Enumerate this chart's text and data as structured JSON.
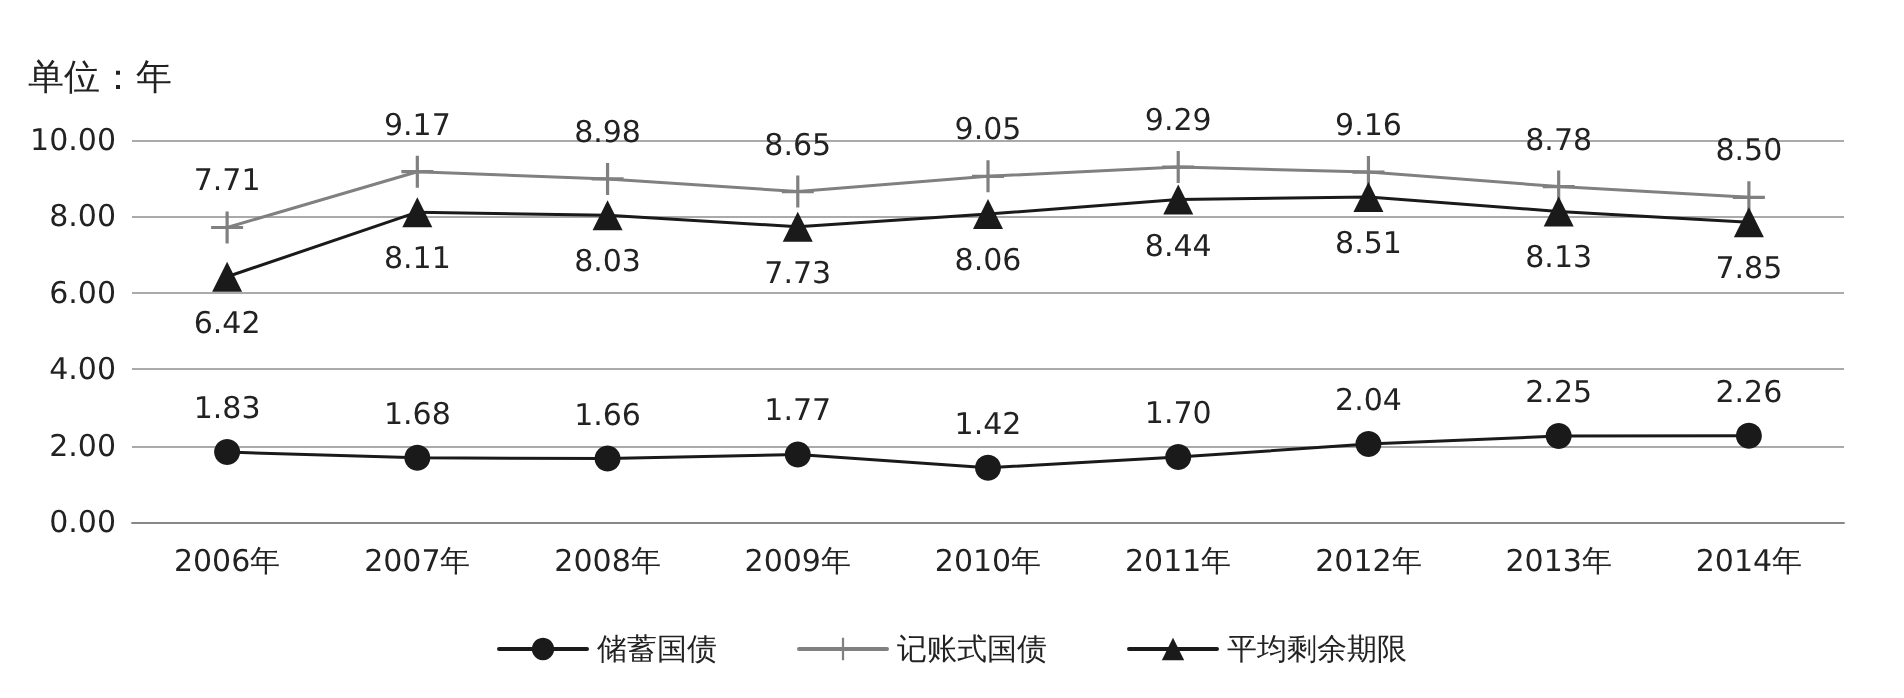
{
  "chart_data": {
    "type": "line",
    "ylabel": "单位：年",
    "categories": [
      "2006年",
      "2007年",
      "2008年",
      "2009年",
      "2010年",
      "2011年",
      "2012年",
      "2013年",
      "2014年"
    ],
    "series": [
      {
        "name": "储蓄国债",
        "color": "#1a1a1a",
        "marker": "circle",
        "values": [
          1.83,
          1.68,
          1.66,
          1.77,
          1.42,
          1.7,
          2.04,
          2.25,
          2.26
        ],
        "value_labels": [
          "1.83",
          "1.68",
          "1.66",
          "1.77",
          "1.42",
          "1.70",
          "2.04",
          "2.25",
          "2.26"
        ]
      },
      {
        "name": "记账式国债",
        "color": "#808080",
        "marker": "cross",
        "values": [
          7.71,
          9.17,
          8.98,
          8.65,
          9.05,
          9.29,
          9.16,
          8.78,
          8.5
        ],
        "value_labels": [
          "7.71",
          "9.17",
          "8.98",
          "8.65",
          "9.05",
          "9.29",
          "9.16",
          "8.78",
          "8.50"
        ]
      },
      {
        "name": "平均剩余期限",
        "color": "#1a1a1a",
        "marker": "triangle",
        "values": [
          6.42,
          8.11,
          8.03,
          7.73,
          8.06,
          8.44,
          8.51,
          8.13,
          7.85
        ],
        "value_labels": [
          "6.42",
          "8.11",
          "8.03",
          "7.73",
          "8.06",
          "8.44",
          "8.51",
          "8.13",
          "7.85"
        ]
      }
    ],
    "ylim": [
      0,
      10
    ],
    "yticks": [
      {
        "value": 0,
        "label": "0.00"
      },
      {
        "value": 2,
        "label": "2.00"
      },
      {
        "value": 4,
        "label": "4.00"
      },
      {
        "value": 6,
        "label": "6.00"
      },
      {
        "value": 8,
        "label": "8.00"
      },
      {
        "value": 10,
        "label": "10.00"
      }
    ],
    "grid": "y",
    "legend": "bottom"
  }
}
